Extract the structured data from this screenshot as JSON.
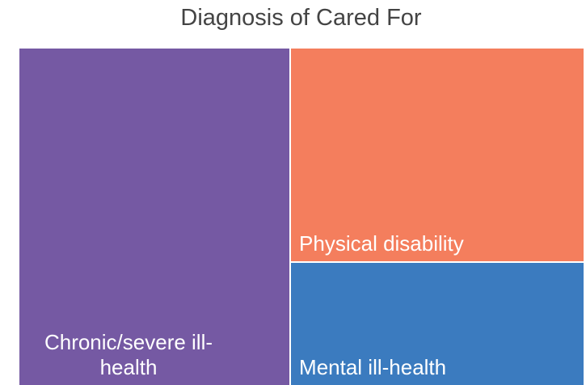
{
  "chart_data": {
    "type": "treemap",
    "title": "Diagnosis of Cared For",
    "categories": [
      "Chronic/severe ill-health",
      "Physical disability",
      "Mental ill-health"
    ],
    "values": [
      48,
      33,
      19
    ],
    "colors": [
      "#7559a3",
      "#f47e5d",
      "#3b7bbf"
    ]
  }
}
